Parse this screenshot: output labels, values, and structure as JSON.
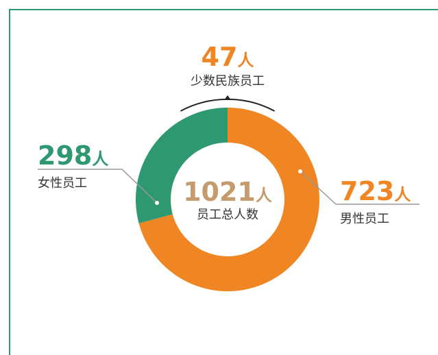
{
  "chart_data": {
    "type": "donut",
    "categories": [
      "男性员工",
      "女性员工"
    ],
    "values": [
      723,
      298
    ],
    "colors": [
      "#f08523",
      "#2e9871"
    ],
    "unit": "人",
    "total": {
      "value": 1021,
      "label": "员工总人数"
    },
    "annotation": {
      "value": 47,
      "label": "少数民族员工"
    }
  }
}
